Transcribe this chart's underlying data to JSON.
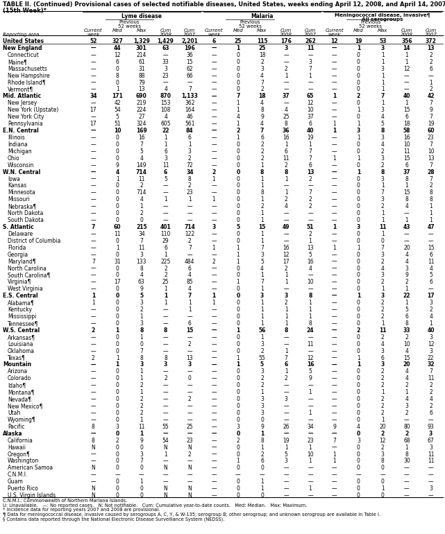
{
  "title_line1": "TABLE II. (Continued) Provisional cases of selected notifiable diseases, United States, weeks ending April 12, 2008, and April 14, 2007",
  "title_line2": "(15th Week)*",
  "footnotes": [
    "C.N.M.I.: Commonwealth of Northern Mariana Islands.",
    "U: Unavailable.   —: No reported cases.   N: Not notifiable.   Cum: Cumulative year-to-date counts.   Med: Median.   Max: Maximum.",
    "* Incidence data for reporting years 2007 and 2008 are provisional.",
    "¶ Data for meningococcal disease, invasive caused by serogroups A, C, Y, & W-135; serogroup B; other serogroup; and unknown serogroup are available in Table I.",
    "§ Contains data reported through the National Electronic Disease Surveillance System (NEDSS)."
  ],
  "rows": [
    [
      "United States",
      "52",
      "327",
      "1,329",
      "1,429",
      "2,201",
      "6",
      "25",
      "115",
      "176",
      "262",
      "12",
      "19",
      "53",
      "356",
      "372"
    ],
    [
      "New England",
      "—",
      "44",
      "301",
      "63",
      "196",
      "—",
      "1",
      "25",
      "3",
      "11",
      "—",
      "1",
      "3",
      "14",
      "13"
    ],
    [
      "Connecticut",
      "—",
      "12",
      "214",
      "—",
      "36",
      "—",
      "0",
      "18",
      "—",
      "—",
      "—",
      "0",
      "1",
      "1",
      "2"
    ],
    [
      "Maine¶",
      "—",
      "6",
      "61",
      "33",
      "15",
      "—",
      "0",
      "2",
      "—",
      "3",
      "—",
      "0",
      "1",
      "1",
      "2"
    ],
    [
      "Massachusetts",
      "—",
      "0",
      "31",
      "3",
      "62",
      "—",
      "0",
      "3",
      "2",
      "7",
      "—",
      "0",
      "3",
      "12",
      "6"
    ],
    [
      "New Hampshire",
      "—",
      "8",
      "88",
      "23",
      "66",
      "—",
      "0",
      "4",
      "1",
      "1",
      "—",
      "0",
      "1",
      "—",
      "—"
    ],
    [
      "Rhode Island¶",
      "—",
      "0",
      "79",
      "—",
      "—",
      "—",
      "0",
      "7",
      "—",
      "—",
      "—",
      "0",
      "1",
      "—",
      "1"
    ],
    [
      "Vermont¶",
      "—",
      "1",
      "13",
      "4",
      "7",
      "—",
      "0",
      "2",
      "—",
      "—",
      "—",
      "0",
      "1",
      "—",
      "2"
    ],
    [
      "Mid. Atlantic",
      "34",
      "171",
      "690",
      "870",
      "1,133",
      "—",
      "7",
      "18",
      "37",
      "65",
      "1",
      "2",
      "7",
      "40",
      "42"
    ],
    [
      "New Jersey",
      "—",
      "42",
      "219",
      "153",
      "362",
      "—",
      "1",
      "4",
      "—",
      "12",
      "—",
      "0",
      "1",
      "1",
      "7"
    ],
    [
      "New York (Upstate)",
      "17",
      "54",
      "224",
      "108",
      "164",
      "—",
      "1",
      "8",
      "4",
      "10",
      "—",
      "1",
      "3",
      "15",
      "9"
    ],
    [
      "New York City",
      "—",
      "5",
      "27",
      "4",
      "46",
      "—",
      "4",
      "9",
      "25",
      "37",
      "—",
      "0",
      "4",
      "6",
      "7"
    ],
    [
      "Pennsylvania",
      "17",
      "51",
      "324",
      "605",
      "561",
      "—",
      "1",
      "4",
      "8",
      "6",
      "1",
      "1",
      "5",
      "18",
      "19"
    ],
    [
      "E.N. Central",
      "—",
      "10",
      "169",
      "22",
      "84",
      "—",
      "2",
      "7",
      "36",
      "40",
      "1",
      "3",
      "8",
      "58",
      "60"
    ],
    [
      "Illinois",
      "—",
      "0",
      "16",
      "1",
      "6",
      "—",
      "1",
      "6",
      "16",
      "19",
      "—",
      "1",
      "3",
      "16",
      "23"
    ],
    [
      "Indiana",
      "—",
      "0",
      "7",
      "1",
      "1",
      "—",
      "0",
      "2",
      "1",
      "1",
      "—",
      "0",
      "4",
      "10",
      "7"
    ],
    [
      "Michigan",
      "—",
      "0",
      "5",
      "6",
      "3",
      "—",
      "0",
      "2",
      "6",
      "7",
      "—",
      "0",
      "2",
      "11",
      "10"
    ],
    [
      "Ohio",
      "—",
      "0",
      "4",
      "3",
      "2",
      "—",
      "0",
      "2",
      "11",
      "7",
      "1",
      "1",
      "3",
      "15",
      "13"
    ],
    [
      "Wisconsin",
      "—",
      "9",
      "149",
      "11",
      "72",
      "—",
      "0",
      "1",
      "2",
      "6",
      "—",
      "0",
      "2",
      "6",
      "7"
    ],
    [
      "W.N. Central",
      "—",
      "4",
      "714",
      "6",
      "34",
      "2",
      "0",
      "8",
      "8",
      "13",
      "—",
      "1",
      "8",
      "37",
      "28"
    ],
    [
      "Iowa",
      "—",
      "1",
      "11",
      "5",
      "8",
      "1",
      "0",
      "1",
      "1",
      "2",
      "—",
      "0",
      "3",
      "8",
      "7"
    ],
    [
      "Kansas",
      "—",
      "0",
      "2",
      "—",
      "2",
      "—",
      "0",
      "1",
      "—",
      "—",
      "—",
      "0",
      "1",
      "1",
      "2"
    ],
    [
      "Minnesota",
      "—",
      "0",
      "714",
      "—",
      "23",
      "—",
      "0",
      "8",
      "1",
      "7",
      "—",
      "0",
      "7",
      "15",
      "8"
    ],
    [
      "Missouri",
      "—",
      "0",
      "4",
      "1",
      "1",
      "1",
      "0",
      "1",
      "2",
      "2",
      "—",
      "0",
      "3",
      "8",
      "8"
    ],
    [
      "Nebraska¶",
      "—",
      "0",
      "1",
      "—",
      "—",
      "—",
      "0",
      "2",
      "4",
      "2",
      "—",
      "0",
      "2",
      "4",
      "1"
    ],
    [
      "North Dakota",
      "—",
      "0",
      "2",
      "—",
      "—",
      "—",
      "0",
      "1",
      "—",
      "—",
      "—",
      "0",
      "1",
      "—",
      "1"
    ],
    [
      "South Dakota",
      "—",
      "0",
      "0",
      "—",
      "—",
      "—",
      "0",
      "1",
      "—",
      "—",
      "—",
      "0",
      "1",
      "1",
      "1"
    ],
    [
      "S. Atlantic",
      "7",
      "60",
      "215",
      "401",
      "714",
      "3",
      "5",
      "15",
      "49",
      "51",
      "1",
      "3",
      "11",
      "43",
      "47"
    ],
    [
      "Delaware",
      "—",
      "11",
      "34",
      "110",
      "122",
      "—",
      "0",
      "1",
      "—",
      "2",
      "—",
      "0",
      "1",
      "—",
      "—"
    ],
    [
      "District of Columbia",
      "—",
      "0",
      "7",
      "29",
      "2",
      "—",
      "0",
      "1",
      "—",
      "1",
      "—",
      "0",
      "0",
      "—",
      "—"
    ],
    [
      "Florida",
      "—",
      "1",
      "11",
      "6",
      "7",
      "1",
      "1",
      "7",
      "16",
      "13",
      "1",
      "1",
      "7",
      "20",
      "15"
    ],
    [
      "Georgia",
      "—",
      "0",
      "3",
      "1",
      "—",
      "—",
      "1",
      "3",
      "12",
      "5",
      "—",
      "0",
      "3",
      "4",
      "6"
    ],
    [
      "Maryland¶",
      "7",
      "31",
      "133",
      "225",
      "484",
      "2",
      "1",
      "5",
      "17",
      "16",
      "—",
      "0",
      "2",
      "4",
      "11"
    ],
    [
      "North Carolina",
      "—",
      "0",
      "8",
      "2",
      "6",
      "—",
      "0",
      "4",
      "2",
      "4",
      "—",
      "0",
      "4",
      "3",
      "4"
    ],
    [
      "South Carolina¶",
      "—",
      "0",
      "4",
      "2",
      "4",
      "—",
      "0",
      "1",
      "1",
      "—",
      "—",
      "0",
      "3",
      "9",
      "5"
    ],
    [
      "Virginia¶",
      "—",
      "17",
      "63",
      "25",
      "85",
      "—",
      "1",
      "7",
      "1",
      "10",
      "—",
      "0",
      "2",
      "2",
      "6"
    ],
    [
      "West Virginia",
      "—",
      "0",
      "9",
      "1",
      "4",
      "—",
      "0",
      "1",
      "—",
      "—",
      "—",
      "0",
      "1",
      "1",
      "—"
    ],
    [
      "E.S. Central",
      "1",
      "0",
      "5",
      "1",
      "7",
      "1",
      "0",
      "3",
      "3",
      "8",
      "—",
      "1",
      "3",
      "22",
      "17"
    ],
    [
      "Alabama¶",
      "1",
      "0",
      "3",
      "1",
      "1",
      "1",
      "0",
      "1",
      "2",
      "1",
      "—",
      "0",
      "2",
      "1",
      "3"
    ],
    [
      "Kentucky",
      "—",
      "0",
      "2",
      "—",
      "1",
      "—",
      "0",
      "1",
      "1",
      "1",
      "—",
      "0",
      "2",
      "5",
      "2"
    ],
    [
      "Mississippi",
      "—",
      "0",
      "1",
      "—",
      "—",
      "—",
      "0",
      "1",
      "1",
      "1",
      "—",
      "0",
      "2",
      "6",
      "4"
    ],
    [
      "Tennessee¶",
      "—",
      "0",
      "3",
      "—",
      "6",
      "—",
      "0",
      "1",
      "1",
      "8",
      "—",
      "0",
      "1",
      "8",
      "1"
    ],
    [
      "W.S. Central",
      "2",
      "1",
      "8",
      "8",
      "15",
      "—",
      "1",
      "56",
      "8",
      "24",
      "—",
      "2",
      "11",
      "33",
      "40"
    ],
    [
      "Arkansas¶",
      "—",
      "0",
      "1",
      "—",
      "—",
      "—",
      "0",
      "1",
      "—",
      "—",
      "—",
      "0",
      "2",
      "2",
      "3"
    ],
    [
      "Louisiana",
      "—",
      "0",
      "0",
      "—",
      "2",
      "—",
      "0",
      "3",
      "—",
      "11",
      "—",
      "0",
      "4",
      "10",
      "12"
    ],
    [
      "Oklahoma",
      "—",
      "0",
      "7",
      "—",
      "—",
      "—",
      "0",
      "2",
      "1",
      "—",
      "—",
      "0",
      "3",
      "4",
      "3"
    ],
    [
      "Texas¶",
      "2",
      "1",
      "8",
      "8",
      "13",
      "—",
      "1",
      "55",
      "7",
      "12",
      "—",
      "1",
      "6",
      "15",
      "22"
    ],
    [
      "Mountain",
      "—",
      "1",
      "3",
      "3",
      "3",
      "—",
      "1",
      "5",
      "6",
      "16",
      "—",
      "1",
      "3",
      "20",
      "32"
    ],
    [
      "Arizona",
      "—",
      "0",
      "1",
      "—",
      "—",
      "—",
      "0",
      "3",
      "1",
      "5",
      "—",
      "0",
      "2",
      "4",
      "7"
    ],
    [
      "Colorado",
      "—",
      "0",
      "1",
      "2",
      "0",
      "—",
      "0",
      "2",
      "2",
      "9",
      "—",
      "0",
      "2",
      "4",
      "11"
    ],
    [
      "Idaho¶",
      "—",
      "0",
      "2",
      "—",
      "—",
      "—",
      "0",
      "2",
      "—",
      "—",
      "—",
      "0",
      "2",
      "2",
      "2"
    ],
    [
      "Montana¶",
      "—",
      "0",
      "1",
      "—",
      "—",
      "—",
      "0",
      "1",
      "—",
      "1",
      "—",
      "0",
      "1",
      "1",
      "2"
    ],
    [
      "Nevada¶",
      "—",
      "0",
      "2",
      "—",
      "2",
      "—",
      "0",
      "3",
      "3",
      "—",
      "—",
      "0",
      "2",
      "4",
      "4"
    ],
    [
      "New Mexico¶",
      "—",
      "0",
      "2",
      "—",
      "—",
      "—",
      "0",
      "3",
      "—",
      "—",
      "—",
      "0",
      "2",
      "3",
      "2"
    ],
    [
      "Utah",
      "—",
      "0",
      "2",
      "—",
      "—",
      "—",
      "0",
      "3",
      "—",
      "1",
      "—",
      "0",
      "2",
      "2",
      "6"
    ],
    [
      "Wyoming¶",
      "—",
      "0",
      "1",
      "—",
      "—",
      "—",
      "0",
      "0",
      "—",
      "—",
      "—",
      "0",
      "1",
      "—",
      "—"
    ],
    [
      "Pacific",
      "8",
      "3",
      "11",
      "55",
      "25",
      "—",
      "3",
      "9",
      "26",
      "34",
      "9",
      "4",
      "20",
      "80",
      "93"
    ],
    [
      "Alaska",
      "—",
      "0",
      "1",
      "—",
      "—",
      "—",
      "0",
      "1",
      "—",
      "—",
      "—",
      "0",
      "2",
      "2",
      "3"
    ],
    [
      "California",
      "8",
      "2",
      "9",
      "54",
      "23",
      "—",
      "2",
      "8",
      "19",
      "23",
      "7",
      "3",
      "12",
      "68",
      "67"
    ],
    [
      "Hawaii",
      "N",
      "0",
      "0",
      "N",
      "N",
      "—",
      "0",
      "1",
      "1",
      "1",
      "—",
      "0",
      "2",
      "1",
      "3"
    ],
    [
      "Oregon¶",
      "—",
      "0",
      "3",
      "1",
      "2",
      "—",
      "0",
      "2",
      "5",
      "10",
      "1",
      "0",
      "3",
      "8",
      "11"
    ],
    [
      "Washington",
      "—",
      "0",
      "7",
      "—",
      "—",
      "—",
      "1",
      "6",
      "3",
      "1",
      "1",
      "0",
      "8",
      "30",
      "11"
    ],
    [
      "American Samoa",
      "N",
      "0",
      "0",
      "N",
      "N",
      "—",
      "0",
      "0",
      "—",
      "—",
      "—",
      "0",
      "0",
      "—",
      "—"
    ],
    [
      "C.N.M.I.",
      "—",
      "—",
      "—",
      "—",
      "—",
      "—",
      "—",
      "—",
      "—",
      "—",
      "—",
      "—",
      "—",
      "—",
      "—"
    ],
    [
      "Guam",
      "—",
      "0",
      "1",
      "—",
      "—",
      "—",
      "0",
      "1",
      "—",
      "—",
      "—",
      "0",
      "0",
      "—",
      "—"
    ],
    [
      "Puerto Rico",
      "N",
      "0",
      "0",
      "N",
      "N",
      "—",
      "0",
      "1",
      "—",
      "1",
      "—",
      "0",
      "1",
      "—",
      "3"
    ],
    [
      "U.S. Virgin Islands",
      "N",
      "0",
      "0",
      "N",
      "N",
      "—",
      "0",
      "0",
      "—",
      "—",
      "—",
      "0",
      "0",
      "—",
      "—"
    ]
  ],
  "bold_rows": [
    0,
    1,
    8,
    13,
    19,
    27,
    37,
    42,
    47,
    57
  ],
  "region_rows": [
    1,
    8,
    13,
    19,
    27,
    37,
    42,
    47,
    57
  ]
}
